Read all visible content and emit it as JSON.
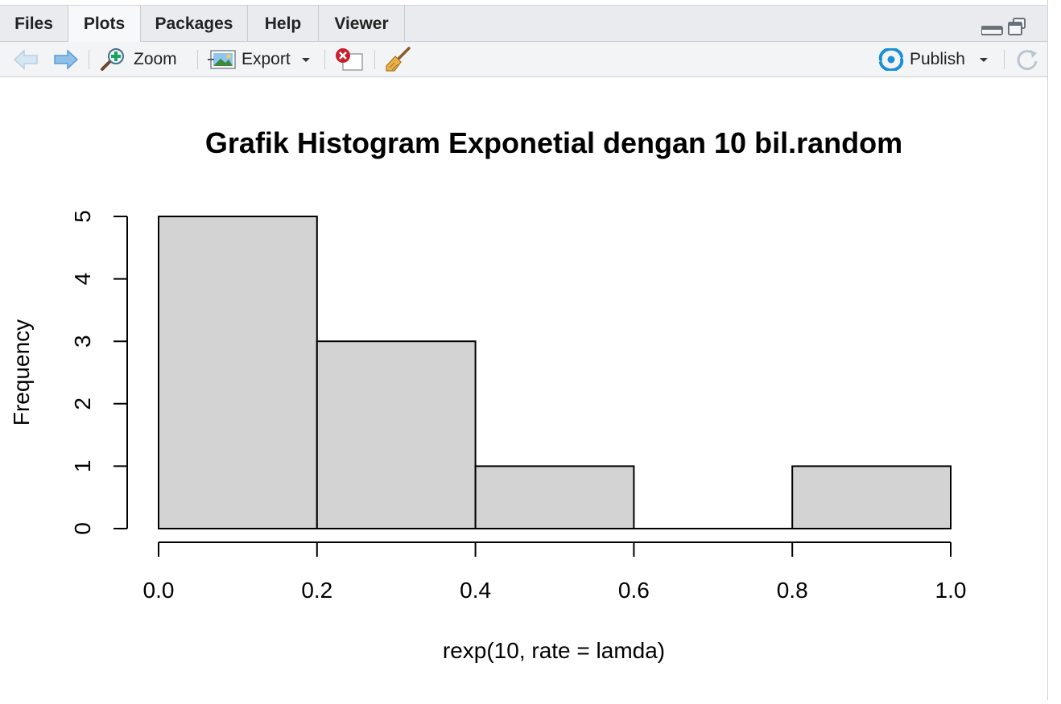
{
  "tabs": [
    {
      "label": "Files",
      "active": false
    },
    {
      "label": "Plots",
      "active": true
    },
    {
      "label": "Packages",
      "active": false
    },
    {
      "label": "Help",
      "active": false
    },
    {
      "label": "Viewer",
      "active": false
    }
  ],
  "toolbar": {
    "zoom_label": "Zoom",
    "export_label": "Export",
    "publish_label": "Publish"
  },
  "icons": {
    "back": "arrow-left-icon",
    "forward": "arrow-right-icon",
    "zoom": "magnifier-plus-icon",
    "export": "image-export-icon",
    "remove": "remove-plot-icon",
    "clear": "broom-icon",
    "publish": "publish-icon",
    "refresh": "refresh-icon",
    "minimize": "minimize-icon",
    "maximize": "maximize-icon"
  },
  "colors": {
    "bar_fill": "#d3d3d3",
    "publish_accent": "#1a8fd6"
  },
  "chart_data": {
    "type": "bar",
    "title": "Grafik Histogram Exponetial dengan 10 bil.random",
    "xlabel": "rexp(10, rate = lamda)",
    "ylabel": "Frequency",
    "bins": [
      [
        0.0,
        0.2
      ],
      [
        0.2,
        0.4
      ],
      [
        0.4,
        0.6
      ],
      [
        0.6,
        0.8
      ],
      [
        0.8,
        1.0
      ]
    ],
    "values": [
      5,
      3,
      1,
      0,
      1
    ],
    "xlim": [
      0,
      1.0
    ],
    "ylim": [
      0,
      5
    ],
    "x_ticks": [
      "0.0",
      "0.2",
      "0.4",
      "0.6",
      "0.8",
      "1.0"
    ],
    "y_ticks": [
      "0",
      "1",
      "2",
      "3",
      "4",
      "5"
    ],
    "grid": false
  }
}
